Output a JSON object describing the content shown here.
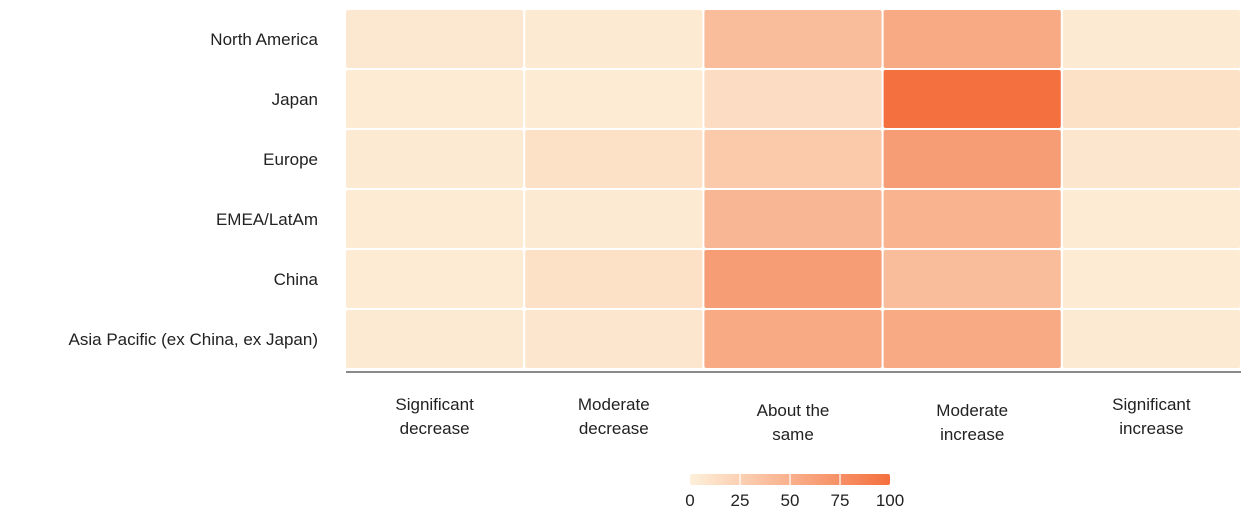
{
  "chart_data": {
    "type": "heatmap",
    "title": "",
    "xlabel": "",
    "ylabel": "",
    "rows": [
      "North America",
      "Japan",
      "Europe",
      "EMEA/LatAm",
      "China",
      "Asia Pacific (ex China, ex Japan)"
    ],
    "columns": [
      [
        "Significant",
        "decrease"
      ],
      [
        "Moderate",
        "decrease"
      ],
      [
        "About the",
        "same"
      ],
      [
        "Moderate",
        "increase"
      ],
      [
        "Significant",
        "increase"
      ]
    ],
    "values": [
      [
        6,
        5,
        40,
        55,
        5
      ],
      [
        4,
        4,
        15,
        100,
        12
      ],
      [
        5,
        12,
        30,
        65,
        8
      ],
      [
        4,
        5,
        45,
        48,
        4
      ],
      [
        4,
        12,
        65,
        40,
        4
      ],
      [
        5,
        8,
        55,
        55,
        5
      ]
    ],
    "colorbar": {
      "min": 0,
      "max": 100,
      "ticks": [
        "0",
        "25",
        "50",
        "75",
        "100"
      ],
      "color_low": "#fdf0da",
      "color_high": "#f4703e"
    }
  }
}
